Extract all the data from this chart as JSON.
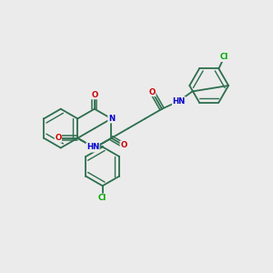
{
  "background_color": "#ebebeb",
  "bond_color": "#2d6e4e",
  "atom_colors": {
    "N": "#0000cc",
    "O": "#cc0000",
    "Cl": "#00aa00",
    "H": "#2d6e4e",
    "C": "#2d6e4e"
  }
}
